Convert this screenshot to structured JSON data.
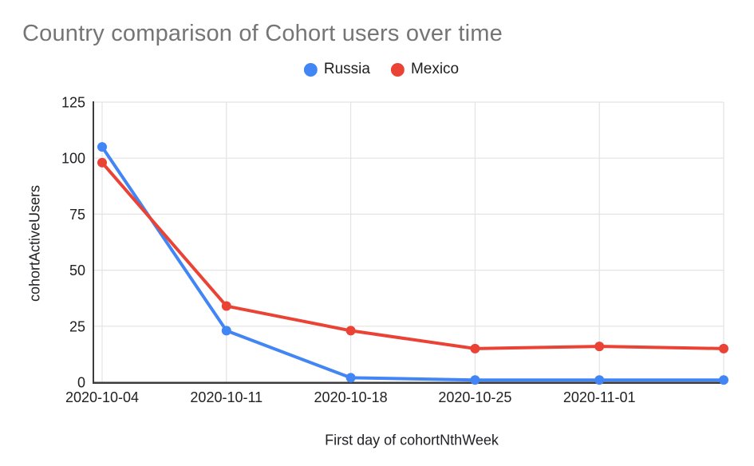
{
  "title": "Country comparison of Cohort users over time",
  "colors": {
    "title_text": "#757575",
    "axis_text": "#202124",
    "gridline": "#e3e3e3",
    "axis_line": "#3c3c3c",
    "background": "#ffffff"
  },
  "legend": {
    "position": "top-center",
    "items": [
      {
        "label": "Russia",
        "color": "#4285F4"
      },
      {
        "label": "Mexico",
        "color": "#EA4335"
      }
    ]
  },
  "chart_data": {
    "type": "line",
    "title": "Country comparison of Cohort users over time",
    "xlabel": "First day of cohortNthWeek",
    "ylabel": "cohortActiveUsers",
    "categories": [
      "2020-10-04",
      "2020-10-11",
      "2020-10-18",
      "2020-10-25",
      "2020-11-01",
      ""
    ],
    "x_tick_labels": [
      "2020-10-04",
      "2020-10-11",
      "2020-10-18",
      "2020-10-25",
      "2020-11-01"
    ],
    "y_ticks": [
      0,
      25,
      50,
      75,
      100,
      125
    ],
    "ylim": [
      0,
      125
    ],
    "grid": true,
    "legend_position": "top",
    "series": [
      {
        "name": "Russia",
        "color": "#4285F4",
        "values": [
          105,
          23,
          2,
          1,
          1,
          1
        ]
      },
      {
        "name": "Mexico",
        "color": "#EA4335",
        "values": [
          98,
          34,
          23,
          15,
          16,
          15
        ]
      }
    ]
  }
}
